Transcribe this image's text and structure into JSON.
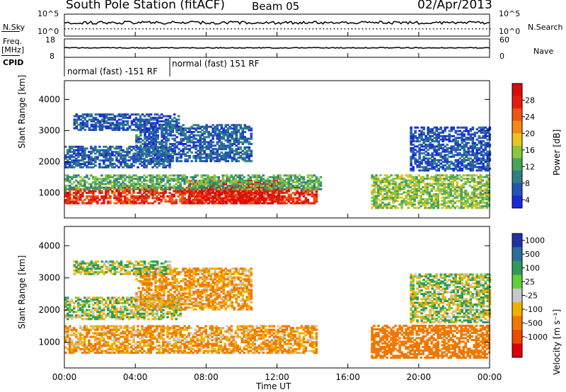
{
  "header": {
    "station": "South Pole Station (fitACF)",
    "beam": "Beam 05",
    "date": "02/Apr/2013"
  },
  "top_panels": {
    "nsky_label": "N.Sky",
    "nsky_tick_hi": "10^5",
    "nsky_tick_lo": "10^0",
    "nsearch_label": "N.Search",
    "nsearch_tick_hi": "10^5",
    "nsearch_tick_lo": "10^0",
    "freq_label_1": "Freq.",
    "freq_label_2": "[MHz]",
    "freq_tick_hi": "18",
    "freq_tick_lo": "8",
    "nave_label": "Nave",
    "nave_tick_hi": "60",
    "nave_tick_lo": "0",
    "cpid_label": "CPID",
    "cpid_segments": [
      "normal (fast) -151 RF",
      "normal (fast) 151 RF"
    ]
  },
  "chart_data": [
    {
      "type": "heatmap",
      "panel": "power",
      "ylabel": "Slant Range [km]",
      "xlabel": "",
      "x_ticks": [
        "00:00",
        "04:00",
        "08:00",
        "12:00",
        "16:00",
        "20:00",
        "00:00"
      ],
      "y_ticks": [
        "1000",
        "2000",
        "3000",
        "4000"
      ],
      "ylim": [
        200,
        4600
      ],
      "xlim_hours": [
        0,
        24
      ],
      "colorbar": {
        "label": "Power [dB]",
        "ticks": [
          "4",
          "8",
          "12",
          "16",
          "20",
          "24",
          "28"
        ],
        "colors": [
          "#1b2ad6",
          "#2455b5",
          "#2f7f86",
          "#47a35a",
          "#8cc63f",
          "#e9c322",
          "#f28a17",
          "#ee5614",
          "#e51a10",
          "#d80c0c"
        ]
      },
      "bands": [
        {
          "t0": 0.0,
          "t1": 14.2,
          "r0": 650,
          "r1": 1200,
          "level": 26
        },
        {
          "t0": 7.0,
          "t1": 12.2,
          "r0": 650,
          "r1": 1400,
          "level": 28
        },
        {
          "t0": 0.0,
          "t1": 14.5,
          "r0": 1100,
          "r1": 1550,
          "level": 12
        },
        {
          "t0": 0.0,
          "t1": 6.0,
          "r0": 1800,
          "r1": 2500,
          "level": 6
        },
        {
          "t0": 4.0,
          "t1": 10.5,
          "r0": 2000,
          "r1": 3200,
          "level": 6
        },
        {
          "t0": 0.5,
          "t1": 6.5,
          "r0": 3000,
          "r1": 3500,
          "level": 5
        },
        {
          "t0": 17.3,
          "t1": 24.0,
          "r0": 500,
          "r1": 1600,
          "level": 14
        },
        {
          "t0": 19.5,
          "t1": 24.0,
          "r0": 1700,
          "r1": 3100,
          "level": 5
        }
      ]
    },
    {
      "type": "heatmap",
      "panel": "velocity",
      "ylabel": "Slant Range [km]",
      "xlabel": "Time UT",
      "x_ticks": [
        "00:00",
        "04:00",
        "08:00",
        "12:00",
        "16:00",
        "20:00",
        "00:00"
      ],
      "y_ticks": [
        "1000",
        "2000",
        "3000",
        "4000"
      ],
      "ylim": [
        200,
        4600
      ],
      "xlim_hours": [
        0,
        24
      ],
      "colorbar": {
        "label": "Velocity [m s⁻¹]",
        "ticks": [
          "1000",
          "500",
          "100",
          "25",
          "-25",
          "-100",
          "-500",
          "-1000"
        ],
        "colors": [
          "#2031a8",
          "#2a6f9a",
          "#2e9a5a",
          "#5fcf3a",
          "#c8c8c8",
          "#f0b000",
          "#f07800",
          "#f04a00",
          "#e00000"
        ]
      },
      "bands": [
        {
          "t0": 0.0,
          "t1": 14.2,
          "r0": 650,
          "r1": 1500,
          "level": -100
        },
        {
          "t0": 0.0,
          "t1": 6.5,
          "r0": 1700,
          "r1": 2400,
          "level": 0
        },
        {
          "t0": 4.0,
          "t1": 10.5,
          "r0": 2000,
          "r1": 3300,
          "level": -100
        },
        {
          "t0": 0.5,
          "t1": 6.0,
          "r0": 3100,
          "r1": 3500,
          "level": 0
        },
        {
          "t0": 17.3,
          "t1": 24.0,
          "r0": 500,
          "r1": 1500,
          "level": -300
        },
        {
          "t0": 19.5,
          "t1": 24.0,
          "r0": 1600,
          "r1": 3100,
          "level": 0
        }
      ]
    }
  ]
}
